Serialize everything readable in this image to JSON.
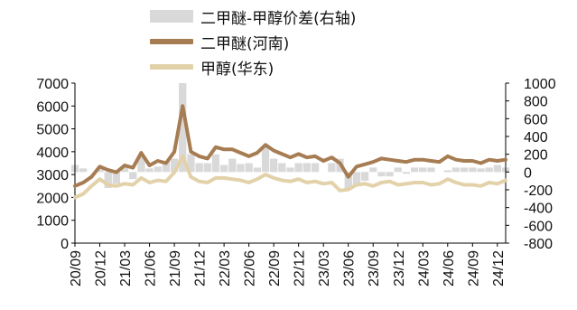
{
  "chart_data": {
    "type": "line",
    "legend": [
      {
        "label": "二甲醚-甲醇价差(右轴)",
        "style": "area",
        "color": "#d9d9d9"
      },
      {
        "label": "二甲醚(河南)",
        "style": "line",
        "color": "#a67c52"
      },
      {
        "label": "甲醇(华东)",
        "style": "line",
        "color": "#e3d2a9"
      }
    ],
    "x_ticks": [
      "20/09",
      "20/12",
      "21/03",
      "21/06",
      "21/09",
      "21/12",
      "22/03",
      "22/06",
      "22/09",
      "22/12",
      "23/03",
      "23/06",
      "23/09",
      "23/12",
      "24/03",
      "24/06",
      "24/09",
      "24/12"
    ],
    "x_range": [
      "2020-09",
      "2025-01"
    ],
    "y_left": {
      "ticks": [
        "0",
        "1000",
        "2000",
        "3000",
        "4000",
        "5000",
        "6000",
        "7000"
      ],
      "range": [
        0,
        7000
      ]
    },
    "y_right": {
      "ticks": [
        "-800",
        "-600",
        "-400",
        "-200",
        "0",
        "200",
        "400",
        "600",
        "800",
        "1000"
      ],
      "range": [
        -800,
        1000
      ]
    },
    "x": [
      "2020-09",
      "2020-10",
      "2020-11",
      "2020-12",
      "2021-01",
      "2021-02",
      "2021-03",
      "2021-04",
      "2021-05",
      "2021-06",
      "2021-07",
      "2021-08",
      "2021-09",
      "2021-10",
      "2021-11",
      "2021-12",
      "2022-01",
      "2022-02",
      "2022-03",
      "2022-04",
      "2022-05",
      "2022-06",
      "2022-07",
      "2022-08",
      "2022-09",
      "2022-10",
      "2022-11",
      "2022-12",
      "2023-01",
      "2023-02",
      "2023-03",
      "2023-04",
      "2023-05",
      "2023-06",
      "2023-07",
      "2023-08",
      "2023-09",
      "2023-10",
      "2023-11",
      "2023-12",
      "2024-01",
      "2024-02",
      "2024-03",
      "2024-04",
      "2024-05",
      "2024-06",
      "2024-07",
      "2024-08",
      "2024-09",
      "2024-10",
      "2024-11",
      "2024-12",
      "2025-01"
    ],
    "series": [
      {
        "name": "二甲醚(河南)",
        "axis": "left",
        "values": [
          2500,
          2650,
          2900,
          3350,
          3200,
          3100,
          3400,
          3300,
          3950,
          3400,
          3600,
          3500,
          4000,
          6000,
          4000,
          3800,
          3700,
          4200,
          4100,
          4100,
          3950,
          3800,
          3950,
          4300,
          4050,
          3900,
          3750,
          3900,
          3750,
          3800,
          3600,
          3750,
          3500,
          2900,
          3350,
          3450,
          3550,
          3700,
          3650,
          3600,
          3550,
          3650,
          3650,
          3600,
          3550,
          3800,
          3650,
          3600,
          3600,
          3500,
          3650,
          3600,
          3650
        ]
      },
      {
        "name": "甲醇(华东)",
        "axis": "left",
        "values": [
          2000,
          2150,
          2500,
          2800,
          2550,
          2500,
          2600,
          2550,
          2850,
          2650,
          2750,
          2700,
          3100,
          3800,
          2900,
          2700,
          2650,
          2850,
          2850,
          2800,
          2750,
          2650,
          2800,
          3000,
          2850,
          2750,
          2700,
          2800,
          2650,
          2700,
          2600,
          2650,
          2300,
          2350,
          2550,
          2600,
          2500,
          2650,
          2700,
          2550,
          2600,
          2650,
          2650,
          2550,
          2600,
          2800,
          2650,
          2550,
          2550,
          2500,
          2650,
          2600,
          2750
        ]
      },
      {
        "name": "二甲醚-甲醇价差(右轴)",
        "axis": "right",
        "values": [
          80,
          40,
          0,
          30,
          -180,
          -130,
          60,
          -80,
          180,
          40,
          60,
          120,
          150,
          1000,
          200,
          100,
          100,
          200,
          80,
          150,
          90,
          100,
          50,
          300,
          150,
          100,
          50,
          100,
          100,
          100,
          0,
          100,
          150,
          -200,
          -150,
          -100,
          50,
          -50,
          -50,
          50,
          -20,
          50,
          50,
          50,
          0,
          20,
          50,
          50,
          50,
          40,
          50,
          80,
          50
        ]
      }
    ]
  }
}
